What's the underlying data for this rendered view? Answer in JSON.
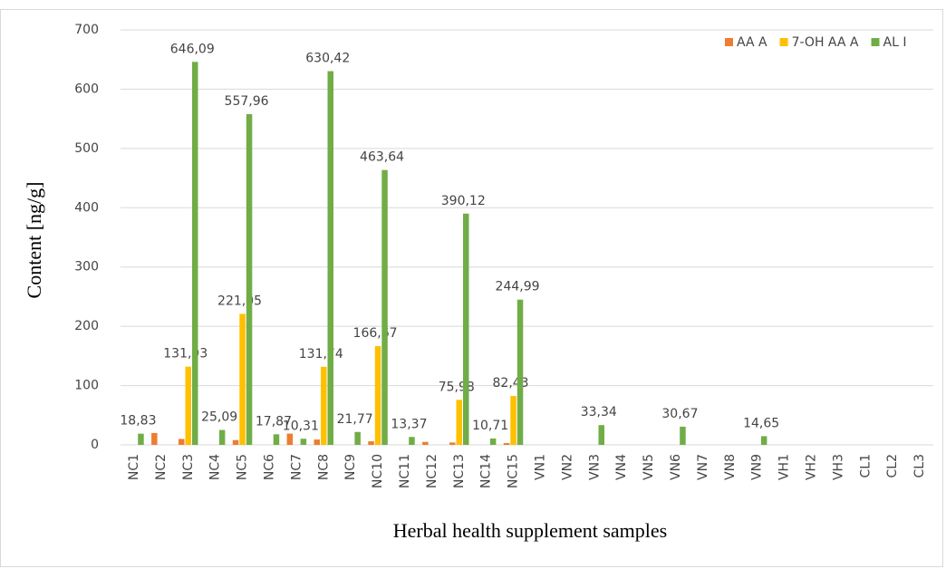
{
  "chart_data": {
    "type": "bar",
    "x_label": "Herbal health supplement samples",
    "y_label": "Content [ng/g]",
    "categories": [
      "NC1",
      "NC2",
      "NC3",
      "NC4",
      "NC5",
      "NC6",
      "NC7",
      "NC8",
      "NC9",
      "NC10",
      "NC11",
      "NC12",
      "NC13",
      "NC14",
      "NC15",
      "VN1",
      "VN2",
      "VN3",
      "VN4",
      "VN5",
      "VN6",
      "VN7",
      "VN8",
      "VN9",
      "VH1",
      "VH2",
      "VH3",
      "CL1",
      "CL2",
      "CL3"
    ],
    "series": [
      {
        "name": "AA A",
        "color": "#ed7d31",
        "values": [
          0,
          20,
          10,
          0,
          8,
          0,
          19,
          9,
          0,
          6,
          0,
          5,
          4,
          0,
          3,
          0,
          0,
          0,
          0,
          0,
          0,
          0,
          0,
          0,
          0,
          0,
          0,
          0,
          0,
          0
        ]
      },
      {
        "name": "7-OH AA A",
        "color": "#ffc000",
        "values": [
          0,
          0,
          131.93,
          0,
          221.05,
          0,
          0,
          131.74,
          0,
          166.67,
          0,
          0,
          75.98,
          0,
          82.43,
          0,
          0,
          0,
          0,
          0,
          0,
          0,
          0,
          0,
          0,
          0,
          0,
          0,
          0,
          0
        ],
        "value_labels": [
          null,
          null,
          "131,93",
          null,
          "221,05",
          null,
          null,
          "131,74",
          null,
          "166,67",
          null,
          null,
          "75,98",
          null,
          "82,43",
          null,
          null,
          null,
          null,
          null,
          null,
          null,
          null,
          null,
          null,
          null,
          null,
          null,
          null,
          null
        ]
      },
      {
        "name": "AL I",
        "color": "#70ad47",
        "values": [
          18.83,
          0,
          646.09,
          25.09,
          557.96,
          17.87,
          10.31,
          630.42,
          21.77,
          463.64,
          13.37,
          0,
          390.12,
          10.71,
          244.99,
          0,
          0,
          33.34,
          0,
          0,
          30.67,
          0,
          0,
          14.65,
          0,
          0,
          0,
          0,
          0,
          0
        ],
        "value_labels": [
          "18,83",
          null,
          "646,09",
          "25,09",
          "557,96",
          "17,87",
          "10,31",
          "630,42",
          "21,77",
          "463,64",
          "13,37",
          null,
          "390,12",
          "10,71",
          "244,99",
          null,
          null,
          "33,34",
          null,
          null,
          "30,67",
          null,
          null,
          "14,65",
          null,
          null,
          null,
          null,
          null,
          null
        ]
      }
    ],
    "ylim": [
      0,
      700
    ],
    "yticks": [
      0,
      100,
      200,
      300,
      400,
      500,
      600,
      700
    ],
    "grid": true,
    "legend": "top-right"
  }
}
